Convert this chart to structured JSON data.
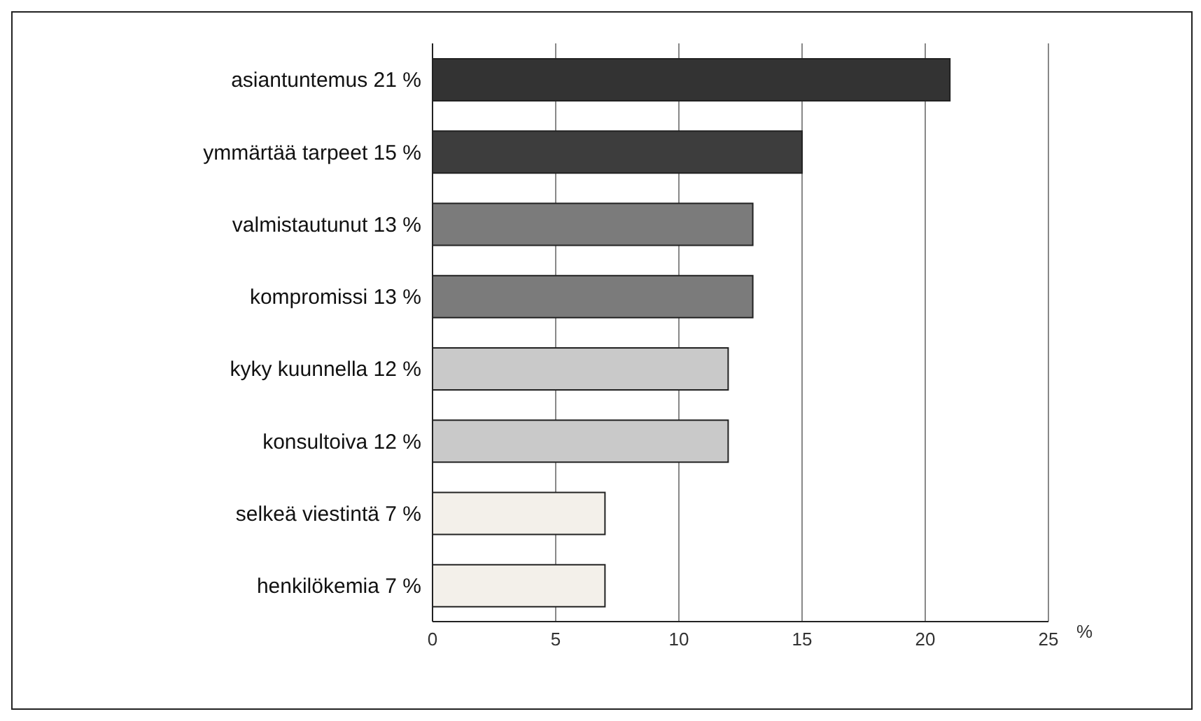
{
  "chart_data": {
    "type": "bar",
    "orientation": "horizontal",
    "xlabel": "%",
    "categories": [
      "asiantuntemus 21 %",
      "ymmärtää tarpeet 15 %",
      "valmistautunut 13 %",
      "kompromissi 13 %",
      "kyky kuunnella 12 %",
      "konsultoiva 12 %",
      "selkeä viestintä 7 %",
      "henkilökemia 7 %"
    ],
    "values": [
      21,
      15,
      13,
      13,
      12,
      12,
      7,
      7
    ],
    "colors": [
      "#333333",
      "#3d3d3d",
      "#7b7b7b",
      "#7b7b7b",
      "#c9c9c9",
      "#c9c9c9",
      "#f3f0ea",
      "#f3f0ea"
    ],
    "xlim": [
      0,
      25
    ],
    "xticks": [
      0,
      5,
      10,
      15,
      20,
      25
    ],
    "grid": "x"
  }
}
